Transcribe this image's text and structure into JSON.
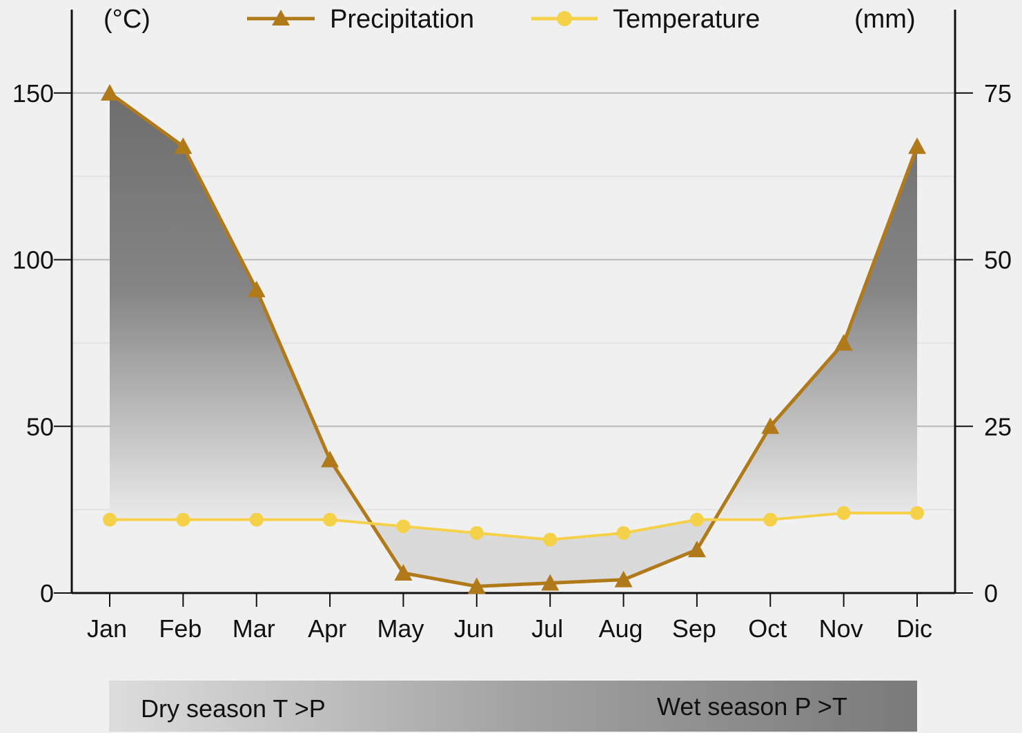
{
  "chart_data": {
    "type": "line",
    "title": "",
    "categories": [
      "Jan",
      "Feb",
      "Mar",
      "Apr",
      "May",
      "Jun",
      "Jul",
      "Aug",
      "Sep",
      "Oct",
      "Nov",
      "Dic"
    ],
    "y_left": {
      "label": "(°C)",
      "range": [
        0,
        175
      ],
      "ticks": [
        0,
        50,
        100,
        150
      ]
    },
    "y_right": {
      "label": "(mm)",
      "range": [
        0,
        87.5
      ],
      "ticks": [
        0,
        25,
        50,
        75
      ]
    },
    "series": [
      {
        "name": "Precipitation",
        "marker": "triangle",
        "color": "#b07a1a",
        "values": [
          150,
          134,
          91,
          40,
          6,
          2,
          3,
          4,
          13,
          50,
          75,
          134
        ]
      },
      {
        "name": "Temperature",
        "marker": "circle",
        "color": "#f5d14a",
        "values": [
          22,
          22,
          22,
          22,
          20,
          18,
          16,
          18,
          22,
          22,
          24,
          24
        ]
      }
    ],
    "legend_position": "top-center",
    "grid": true,
    "season_band": {
      "dry_label": "Dry season T >P",
      "wet_label": "Wet season P >T"
    }
  }
}
